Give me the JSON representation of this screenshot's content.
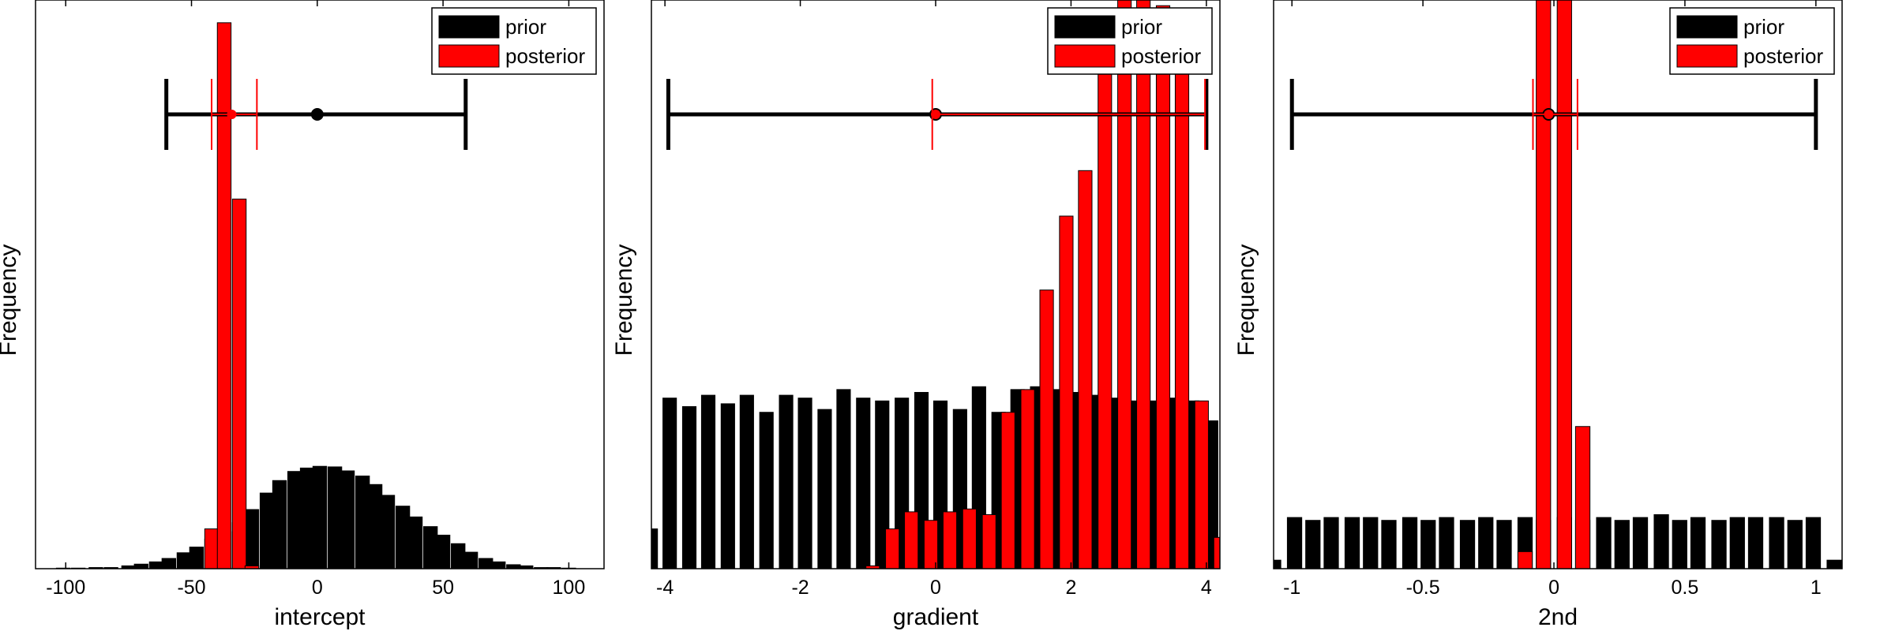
{
  "chart_data": [
    {
      "type": "bar",
      "panel": "intercept",
      "xlabel": "intercept",
      "ylabel": "Frequency",
      "xlim": [
        -112,
        114
      ],
      "xticks": [
        -100,
        -50,
        0,
        50,
        100
      ],
      "xtick_labels": [
        "-100",
        "-50",
        "0",
        "50",
        "100"
      ],
      "ylim": [
        0,
        100
      ],
      "legend": {
        "position": "top-right",
        "entries": [
          "prior",
          "posterior"
        ]
      },
      "colors": {
        "prior": "#000000",
        "posterior": "#ff0000"
      },
      "series": [
        {
          "name": "prior",
          "bin_width": 5.45,
          "x": [
            -101,
            -95,
            -88,
            -82,
            -75,
            -70,
            -64,
            -59,
            -53,
            -48,
            -42,
            -37,
            -31,
            -26,
            -20,
            -15,
            -9,
            -4,
            1,
            7,
            12,
            18,
            23,
            28,
            34,
            39,
            45,
            50,
            56,
            61,
            67,
            72,
            78,
            83,
            89,
            94,
            100
          ],
          "values": [
            0.1,
            0.1,
            0.2,
            0.2,
            0.5,
            0.8,
            1.2,
            1.8,
            2.8,
            3.8,
            5.2,
            6.5,
            8.1,
            10.4,
            13.3,
            15.5,
            17.1,
            17.7,
            18.0,
            17.9,
            17.2,
            16.3,
            14.8,
            12.9,
            11.0,
            9.1,
            7.4,
            5.9,
            4.4,
            2.9,
            1.8,
            1.2,
            0.7,
            0.5,
            0.2,
            0.2,
            0.1
          ]
        },
        {
          "name": "posterior",
          "bin_width": 5.45,
          "x": [
            -42,
            -37,
            -31,
            -26
          ],
          "values": [
            7.0,
            96.0,
            65.0,
            0.5
          ]
        }
      ],
      "interval_prior": {
        "center": 0,
        "low": -60,
        "high": 59
      },
      "interval_posterior": {
        "center": -34,
        "low": -42,
        "high": -24
      }
    },
    {
      "type": "bar",
      "panel": "gradient",
      "xlabel": "gradient",
      "ylabel": "Frequency",
      "xlim": [
        -4.2,
        4.2
      ],
      "xticks": [
        -4,
        -2,
        0,
        2,
        4
      ],
      "xtick_labels": [
        "-4",
        "-2",
        "0",
        "2",
        "4"
      ],
      "ylim": [
        0,
        100
      ],
      "legend": {
        "position": "top-right",
        "entries": [
          "prior",
          "posterior"
        ]
      },
      "colors": {
        "prior": "#000000",
        "posterior": "#ff0000"
      },
      "series": [
        {
          "name": "prior",
          "bin_width": 0.2,
          "x": [
            -4.21,
            -3.93,
            -3.64,
            -3.36,
            -3.07,
            -2.79,
            -2.5,
            -2.21,
            -1.93,
            -1.64,
            -1.36,
            -1.07,
            -0.79,
            -0.5,
            -0.21,
            0.07,
            0.36,
            0.64,
            0.93,
            1.21,
            1.5,
            1.79,
            2.07,
            2.36,
            2.64,
            2.93,
            3.21,
            3.5,
            3.79,
            4.07
          ],
          "values": [
            7.0,
            30.0,
            28.5,
            30.5,
            29.0,
            30.5,
            27.5,
            30.5,
            30.0,
            28.0,
            31.5,
            30.0,
            29.5,
            30.0,
            31.0,
            29.5,
            28.0,
            32.0,
            27.5,
            31.5,
            32.0,
            31.5,
            31.0,
            30.5,
            30.0,
            29.5,
            29.5,
            30.0,
            29.5,
            26.0
          ]
        },
        {
          "name": "posterior",
          "bin_width": 0.2,
          "x": [
            -0.93,
            -0.64,
            -0.36,
            -0.07,
            0.21,
            0.5,
            0.79,
            1.07,
            1.36,
            1.64,
            1.93,
            2.21,
            2.5,
            2.79,
            3.07,
            3.36,
            3.64,
            3.93,
            4.21
          ],
          "values": [
            0.5,
            7.0,
            10.0,
            8.5,
            10.0,
            10.5,
            9.5,
            27.5,
            31.5,
            49.0,
            62.0,
            70.0,
            93.0,
            108.0,
            101.0,
            99.0,
            90.0,
            29.5,
            5.5
          ]
        }
      ],
      "interval_prior": {
        "center": 0.0,
        "low": -3.95,
        "high": 4.0
      },
      "interval_posterior": {
        "center": 0.0,
        "low": -0.05,
        "high": 3.98
      }
    },
    {
      "type": "bar",
      "panel": "2nd",
      "xlabel": "2nd",
      "ylabel": "Frequency",
      "xlim": [
        -1.07,
        1.1
      ],
      "xticks": [
        -1,
        -0.5,
        0,
        0.5,
        1
      ],
      "xtick_labels": [
        "-1",
        "-0.5",
        "0",
        "0.5",
        "1"
      ],
      "ylim": [
        0,
        100
      ],
      "legend": {
        "position": "top-right",
        "entries": [
          "prior",
          "posterior"
        ]
      },
      "colors": {
        "prior": "#000000",
        "posterior": "#ff0000"
      },
      "series": [
        {
          "name": "prior",
          "bin_width": 0.055,
          "x": [
            -1.07,
            -0.99,
            -0.92,
            -0.85,
            -0.77,
            -0.7,
            -0.63,
            -0.55,
            -0.48,
            -0.41,
            -0.33,
            -0.26,
            -0.19,
            -0.11,
            -0.04,
            0.04,
            0.11,
            0.19,
            0.26,
            0.33,
            0.41,
            0.48,
            0.55,
            0.63,
            0.7,
            0.77,
            0.85,
            0.92,
            0.99,
            1.07
          ],
          "values": [
            1.5,
            9.0,
            8.5,
            9.0,
            9.0,
            9.0,
            8.5,
            9.0,
            8.5,
            9.0,
            8.5,
            9.0,
            8.5,
            9.0,
            8.5,
            9.0,
            8.5,
            9.0,
            8.5,
            9.0,
            9.5,
            8.5,
            9.0,
            8.5,
            9.0,
            9.0,
            9.0,
            8.5,
            9.0,
            1.5
          ]
        },
        {
          "name": "posterior",
          "bin_width": 0.055,
          "x": [
            -0.11,
            -0.04,
            0.04,
            0.11
          ],
          "values": [
            3.0,
            101.0,
            112.0,
            25.0
          ]
        }
      ],
      "interval_prior": {
        "center": -0.02,
        "low": -1.0,
        "high": 1.0
      },
      "interval_posterior": {
        "center": -0.02,
        "low": -0.08,
        "high": 0.09
      }
    }
  ]
}
